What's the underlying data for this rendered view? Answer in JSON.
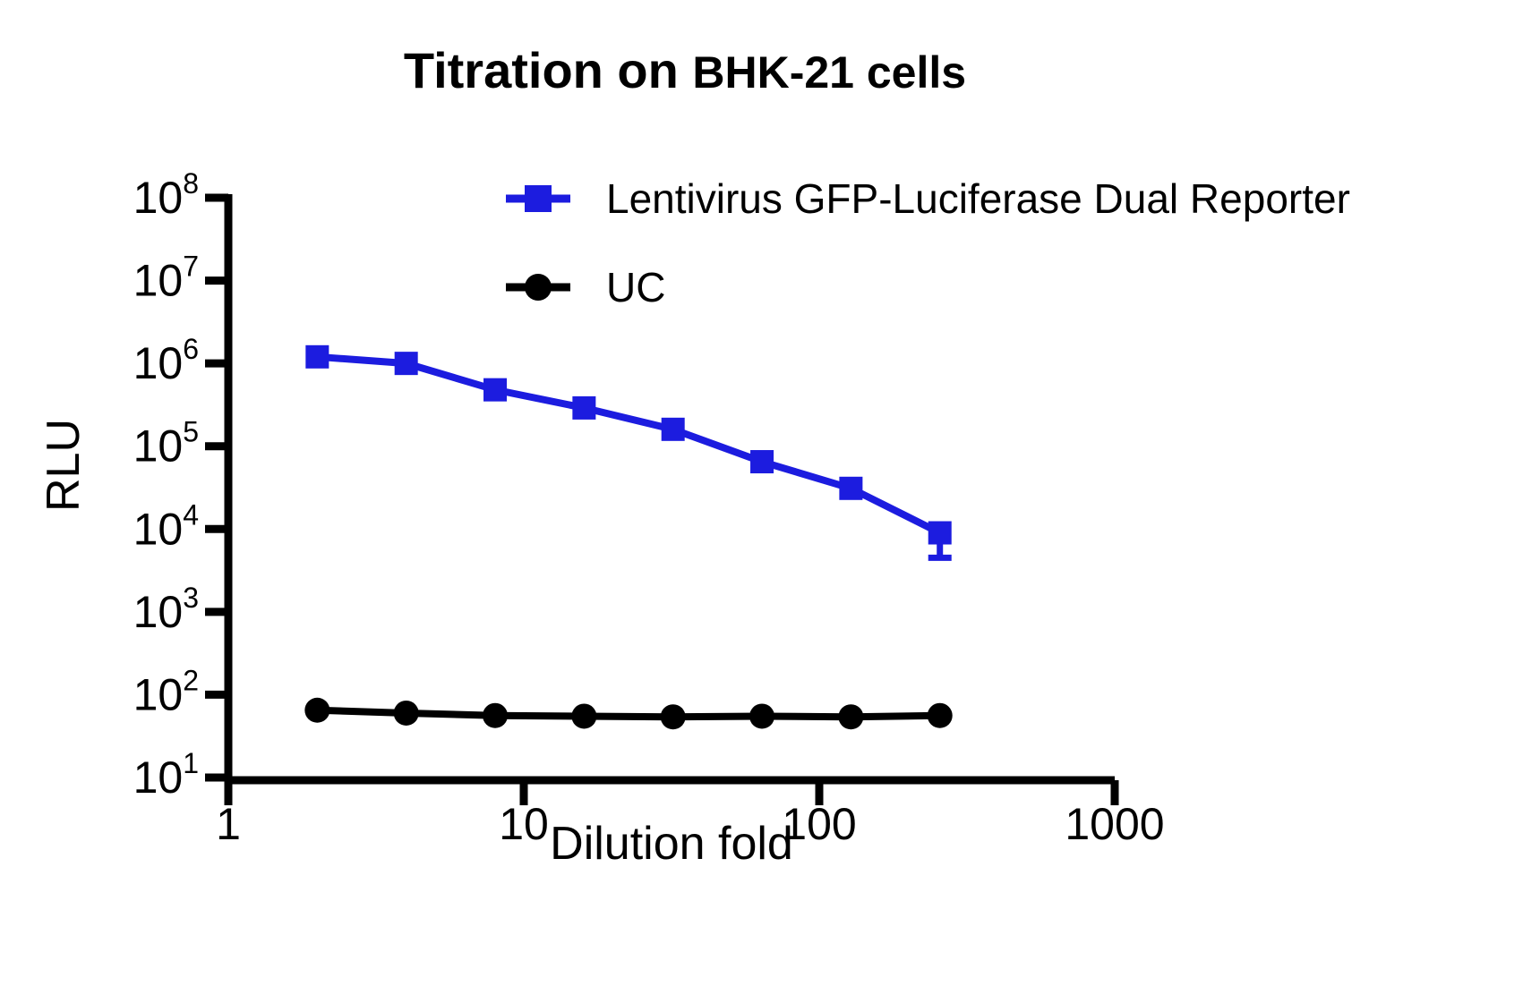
{
  "title": {
    "part1": "Titration on ",
    "part2": "BHK-21 cells"
  },
  "axes": {
    "x": {
      "label": "Dilution fold",
      "scale": "log",
      "ticks": [
        1,
        10,
        100,
        1000
      ]
    },
    "y": {
      "label": "RLU",
      "scale": "log",
      "tick_base": "10",
      "tick_exponents": [
        1,
        2,
        3,
        4,
        5,
        6,
        7,
        8
      ]
    }
  },
  "chart_data": {
    "type": "line",
    "title": "Titration on BHK-21 cells",
    "xlabel": "Dilution fold",
    "ylabel": "RLU",
    "xscale": "log",
    "yscale": "log",
    "xlim": [
      1,
      1000
    ],
    "ylim": [
      10,
      100000000
    ],
    "grid": false,
    "legend_position": "inside-top-right",
    "x": [
      2,
      4,
      8,
      16,
      32,
      64,
      128,
      256
    ],
    "series": [
      {
        "name": "Lentivirus GFP-Luciferase Dual Reporter",
        "marker": "square",
        "color": "#1C1CDF",
        "values": [
          1200000,
          1000000,
          480000,
          290000,
          160000,
          65000,
          31000,
          9000
        ],
        "error_minus": [
          null,
          null,
          null,
          null,
          null,
          null,
          null,
          4500
        ]
      },
      {
        "name": "UC",
        "marker": "circle",
        "color": "#000000",
        "values": [
          65,
          60,
          56,
          55,
          54,
          55,
          54,
          56
        ],
        "error_minus": [
          null,
          null,
          null,
          null,
          null,
          null,
          null,
          null
        ]
      }
    ]
  }
}
